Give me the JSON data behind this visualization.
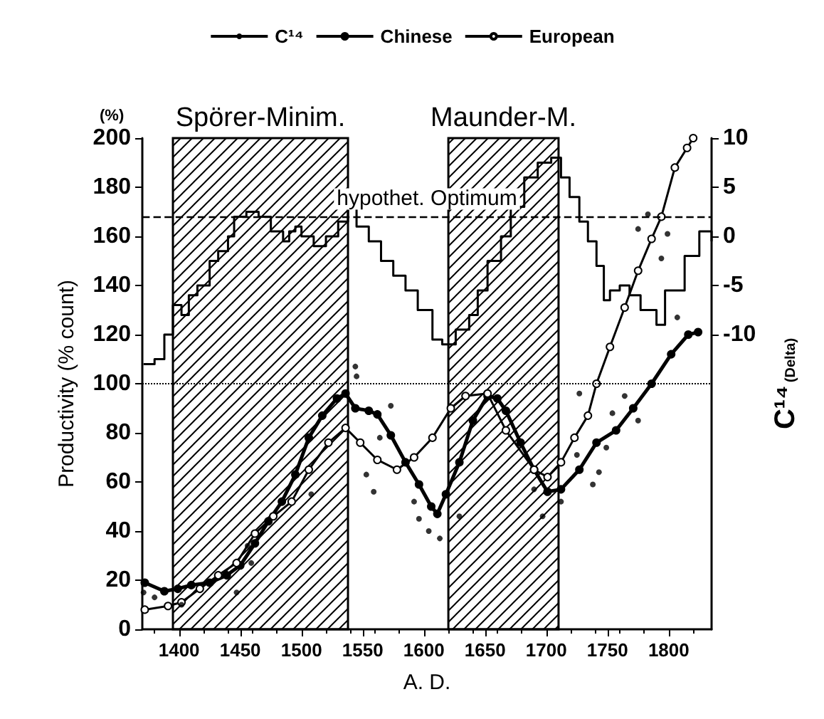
{
  "chart_data": {
    "type": "line",
    "xlabel": "A. D.",
    "ylabel": "Productivity (% count)",
    "y2label": "C¹⁴$_{(Delta)}$",
    "annotations": [
      "(%)"
    ],
    "xlim": [
      1370,
      1835
    ],
    "xticks": [
      1400,
      1450,
      1500,
      1550,
      1600,
      1650,
      1700,
      1750,
      1800
    ],
    "ylim": [
      0,
      200
    ],
    "yticks": [
      0,
      20,
      40,
      60,
      80,
      100,
      120,
      140,
      160,
      180,
      200
    ],
    "y2lim": [
      -40,
      10
    ],
    "y2ticks": [
      -10,
      -5,
      0,
      5,
      10
    ],
    "legend": "top",
    "marker": "circle",
    "grid": false,
    "bands": [
      {
        "axis": "x",
        "from": 1395,
        "to": 1538,
        "label": "Spörer-Minim."
      },
      {
        "axis": "x",
        "from": 1620,
        "to": 1710,
        "label": "Maunder-M."
      }
    ],
    "ref_lines": [
      {
        "axis": "y",
        "value": 168,
        "label": "hypothet. Optimum",
        "line_style": "dashed"
      },
      {
        "axis": "y",
        "value": 100,
        "label": null,
        "line_style": "dotted"
      }
    ],
    "series": [
      {
        "name": "C¹⁴",
        "type": "step",
        "axis": "y2",
        "color": "#000000",
        "marker": "none",
        "x": [
          1371,
          1380,
          1388,
          1395,
          1402,
          1408,
          1415,
          1425,
          1432,
          1440,
          1445,
          1455,
          1465,
          1475,
          1485,
          1490,
          1495,
          1500,
          1510,
          1520,
          1530,
          1538,
          1545,
          1555,
          1565,
          1575,
          1585,
          1595,
          1607,
          1615,
          1626,
          1637,
          1644,
          1652,
          1663,
          1671,
          1682,
          1693,
          1704,
          1712,
          1719,
          1727,
          1734,
          1741,
          1747,
          1752,
          1760,
          1768,
          1777,
          1790,
          1797,
          1813,
          1825,
          1835
        ],
        "values": [
          -13,
          -12.5,
          -10,
          -7,
          -8,
          -6,
          -5,
          -2.5,
          -1.5,
          0,
          2,
          2.5,
          2,
          0.5,
          -0.5,
          0.5,
          1,
          0,
          -1,
          0,
          1.5,
          3,
          1,
          -0.5,
          -2.5,
          -4,
          -5.5,
          -7.5,
          -10.5,
          -11,
          -9.5,
          -8,
          -5.5,
          -2.5,
          0,
          3,
          6,
          7.5,
          8,
          6,
          4,
          1.5,
          -0.5,
          -3,
          -6.5,
          -5.5,
          -5,
          -6,
          -7.5,
          -9,
          -5.5,
          -2,
          0.5,
          -0.5
        ]
      },
      {
        "name": "Chinese",
        "color": "#000000",
        "x": [
          1372,
          1388,
          1399,
          1410,
          1425,
          1439,
          1450,
          1462,
          1473,
          1484,
          1495,
          1506,
          1517,
          1529,
          1536,
          1544,
          1555,
          1562,
          1573,
          1585,
          1596,
          1606,
          1611,
          1618,
          1629,
          1640,
          1652,
          1660,
          1667,
          1679,
          1690,
          1701,
          1712,
          1727,
          1741,
          1757,
          1771,
          1786,
          1802,
          1816,
          1824
        ],
        "values": [
          19,
          15.5,
          16.5,
          18,
          19,
          22,
          26,
          35,
          44,
          52,
          63,
          78,
          87,
          94,
          96,
          90,
          89,
          87.5,
          79,
          68,
          59,
          50,
          47,
          55,
          68,
          85,
          95,
          94,
          89,
          76,
          65,
          56,
          57,
          65,
          76,
          81,
          90,
          100,
          112,
          120,
          121
        ]
      },
      {
        "name": "European",
        "color": "#000000",
        "x": [
          1372,
          1391,
          1402,
          1417,
          1432,
          1447,
          1462,
          1477,
          1492,
          1506,
          1522,
          1536,
          1548,
          1562,
          1578,
          1592,
          1607,
          1622,
          1634,
          1652,
          1667,
          1690,
          1701,
          1712,
          1723,
          1734,
          1741,
          1752,
          1764,
          1775,
          1786,
          1794,
          1805,
          1815,
          1820
        ],
        "values": [
          8,
          9.5,
          11,
          16.5,
          22,
          27,
          39,
          46,
          52,
          65,
          76,
          82,
          76,
          69,
          65,
          70,
          78,
          90,
          95,
          96,
          81,
          65,
          62,
          68,
          78,
          87,
          100,
          115,
          131,
          146,
          159,
          168,
          188,
          196,
          200
        ]
      },
      {
        "type": "scatter",
        "color": "#000000",
        "x": [
          1371,
          1380,
          1402,
          1447,
          1456,
          1459,
          1508,
          1544,
          1545,
          1553,
          1559,
          1564,
          1573,
          1592,
          1596,
          1604,
          1613,
          1629,
          1690,
          1697,
          1712,
          1725,
          1727,
          1738,
          1743,
          1749,
          1754,
          1764,
          1775,
          1775,
          1783,
          1794,
          1799,
          1807
        ],
        "values": [
          15,
          13,
          10,
          15,
          34,
          27,
          55,
          107,
          103,
          63,
          56,
          78,
          91,
          52,
          45,
          40,
          37,
          46,
          57,
          46,
          52,
          71,
          96,
          59,
          64,
          74,
          88,
          95,
          85,
          163,
          169,
          151,
          161,
          127
        ]
      }
    ]
  }
}
